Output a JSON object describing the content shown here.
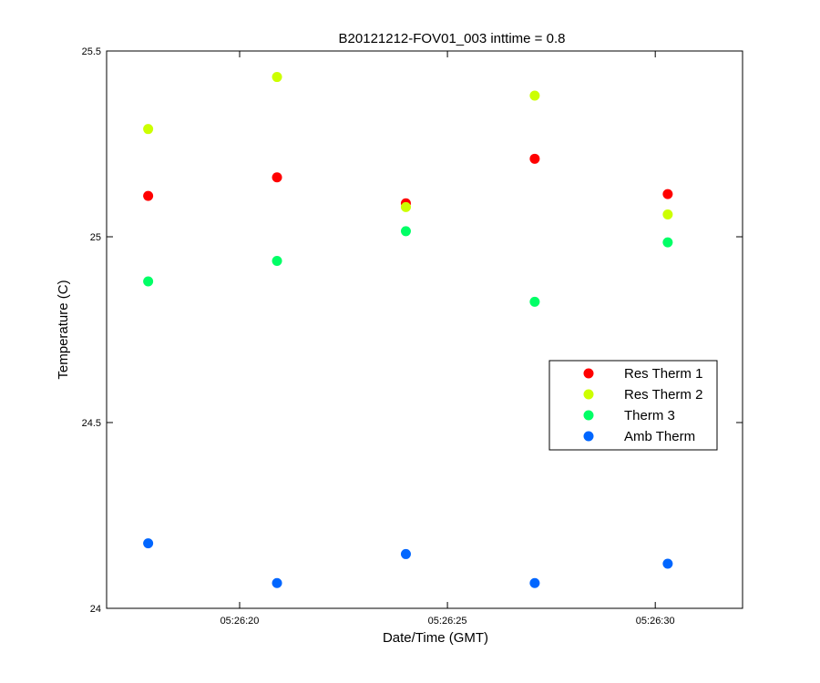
{
  "chart_data": {
    "type": "scatter",
    "title": "B20121212-FOV01_003 inttime = 0.8",
    "xlabel": "Date/Time (GMT)",
    "ylabel": "Temperature (C)",
    "xlim": [
      "05:26:16.8",
      "05:26:32.1"
    ],
    "ylim": [
      24,
      25.5
    ],
    "x_ticks": [
      "05:26:20",
      "05:26:25",
      "05:26:30"
    ],
    "y_ticks": [
      "24",
      "24.5",
      "25",
      "25.5"
    ],
    "grid": false,
    "legend_position": "center-right",
    "x": [
      "05:26:17.8",
      "05:26:20.9",
      "05:26:24.0",
      "05:26:27.1",
      "05:26:30.3"
    ],
    "series": [
      {
        "name": "Res Therm 1",
        "color": "#ff0000",
        "values": [
          25.11,
          25.16,
          25.09,
          25.21,
          25.115
        ]
      },
      {
        "name": "Res Therm 2",
        "color": "#ccff00",
        "values": [
          25.29,
          25.43,
          25.08,
          25.38,
          25.06
        ]
      },
      {
        "name": "Therm 3",
        "color": "#00ff66",
        "values": [
          24.88,
          24.935,
          25.015,
          24.825,
          24.985
        ]
      },
      {
        "name": "Amb Therm",
        "color": "#0066ff",
        "values": [
          24.175,
          24.068,
          24.146,
          24.068,
          24.12
        ]
      }
    ]
  }
}
